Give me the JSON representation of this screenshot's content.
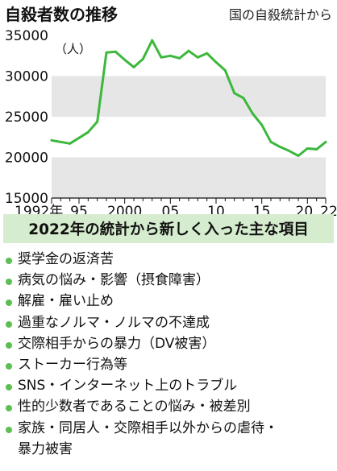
{
  "header": {
    "title": "自殺者数の推移",
    "source": "国の自殺統計から"
  },
  "chart_data": {
    "type": "line",
    "unit_label": "（人）",
    "ylim": [
      15000,
      35000
    ],
    "y_ticks": [
      15000,
      20000,
      25000,
      30000,
      35000
    ],
    "y_tick_labels": [
      "15000",
      "20000",
      "25000",
      "30000",
      "35000"
    ],
    "x_range": [
      1992,
      2022
    ],
    "x_ticks": [
      1992,
      1995,
      2000,
      2005,
      2010,
      2015,
      2020,
      2022
    ],
    "x_tick_labels": [
      "1992年",
      "95",
      "2000",
      "05",
      "10",
      "15",
      "20",
      "22"
    ],
    "line_color": "#3cb83c",
    "band_color": "#e6e6e6",
    "series": [
      {
        "x": [
          1992,
          1993,
          1994,
          1995,
          1996,
          1997,
          1998,
          1999,
          2000,
          2001,
          2002,
          2003,
          2004,
          2005,
          2006,
          2007,
          2008,
          2009,
          2010,
          2011,
          2012,
          2013,
          2014,
          2015,
          2016,
          2017,
          2018,
          2019,
          2020,
          2021,
          2022
        ],
        "values": [
          22100,
          21900,
          21700,
          22400,
          23100,
          24400,
          32900,
          33000,
          32000,
          31100,
          32100,
          34400,
          32300,
          32500,
          32200,
          33100,
          32300,
          32800,
          31700,
          30700,
          27900,
          27300,
          25400,
          24000,
          21900,
          21300,
          20800,
          20200,
          21100,
          21000,
          21900
        ]
      }
    ]
  },
  "panel": {
    "title": "2022年の統計から新しく入った主な項目",
    "items": [
      "奨学金の返済苦",
      "病気の悩み・影響（摂食障害）",
      "解雇・雇い止め",
      "過重なノルマ・ノルマの不達成",
      "交際相手からの暴力（DV被害）",
      "ストーカー行為等",
      "SNS・インターネット上のトラブル",
      "性的少数者であることの悩み・被差別",
      "家族・同居人・交際相手以外からの虐待・"
    ],
    "last_item_continuation": "暴力被害"
  }
}
